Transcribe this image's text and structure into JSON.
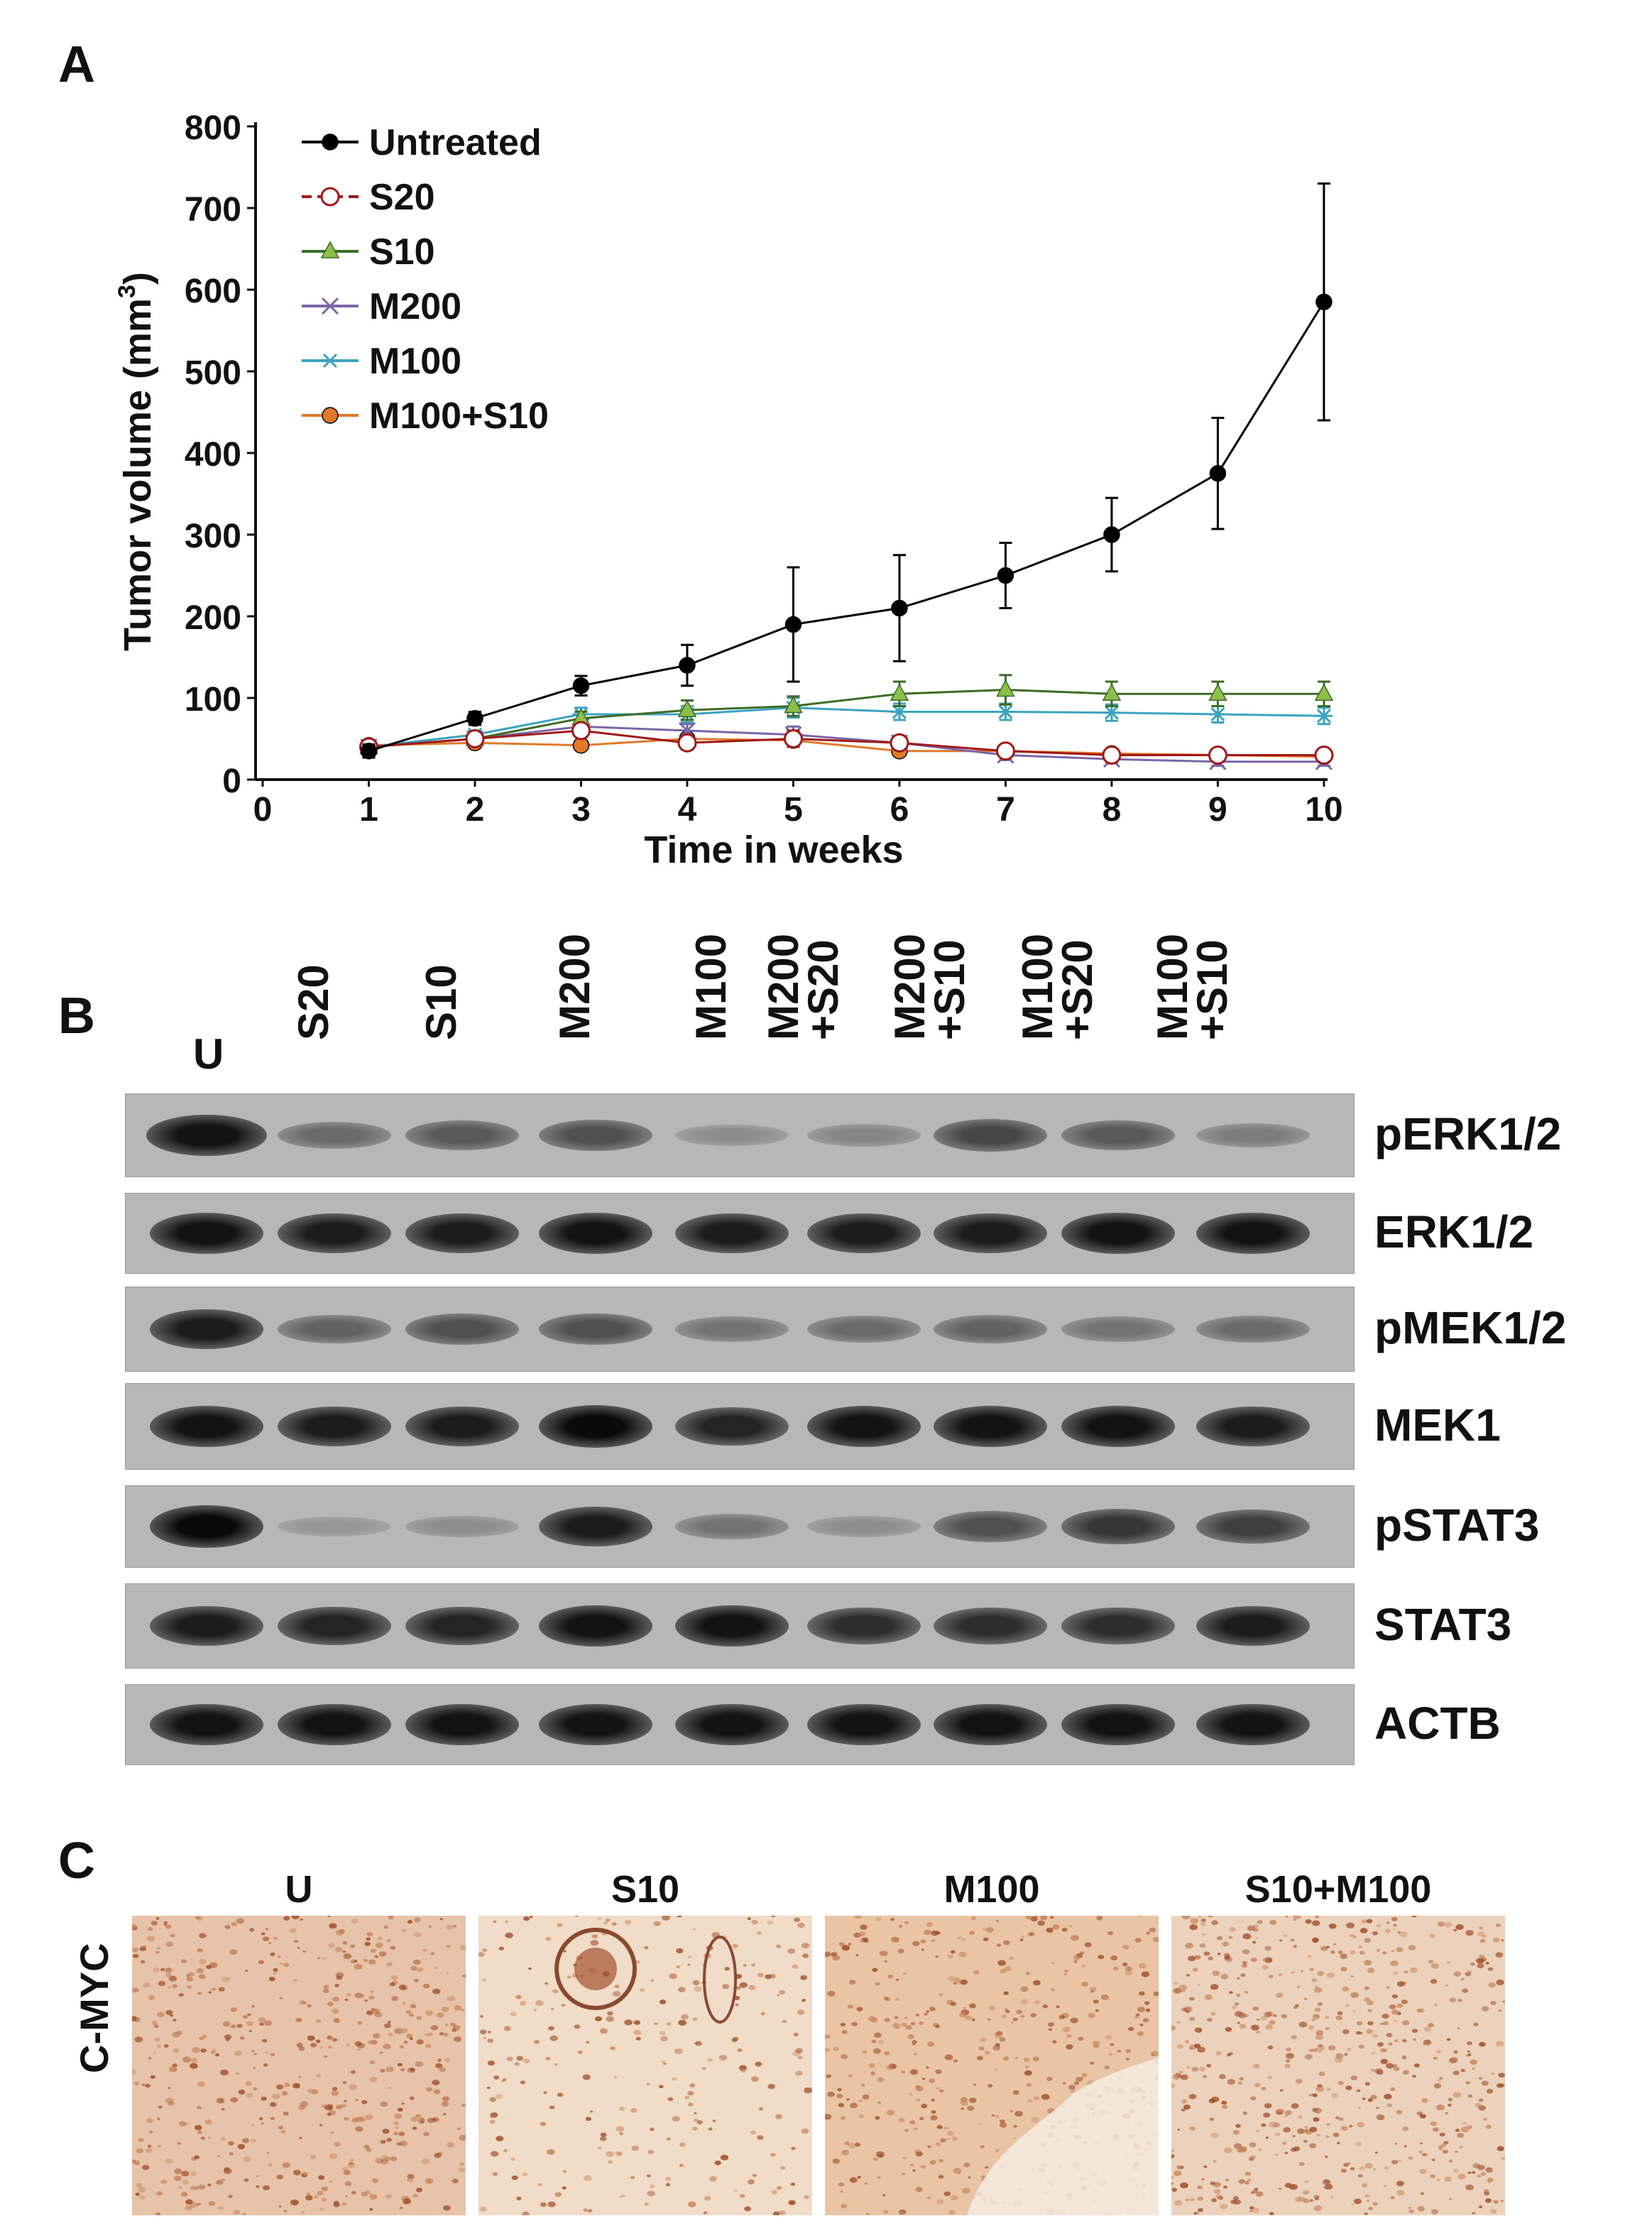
{
  "panels": {
    "a": "A",
    "b": "B",
    "c": "C"
  },
  "chart_data": {
    "type": "line",
    "xlabel": "Time in weeks",
    "ylabel": "Tumor volume (mm",
    "ylabel_sup": "3",
    "ylabel_close": ")",
    "xlim": [
      0,
      10
    ],
    "ylim": [
      0,
      800
    ],
    "xticks": [
      0,
      1,
      2,
      3,
      4,
      5,
      6,
      7,
      8,
      9,
      10
    ],
    "yticks": [
      0,
      100,
      200,
      300,
      400,
      500,
      600,
      700,
      800
    ],
    "x": [
      1,
      2,
      3,
      4,
      5,
      6,
      7,
      8,
      9,
      10
    ],
    "legend_position": "top-left",
    "series": [
      {
        "name": "Untreated",
        "color": "#000000",
        "marker": "filled-circle",
        "values": [
          35,
          75,
          115,
          140,
          190,
          210,
          250,
          300,
          375,
          585
        ],
        "errors": [
          8,
          8,
          12,
          25,
          70,
          65,
          40,
          45,
          68,
          145
        ]
      },
      {
        "name": "S20",
        "color": "#a01818",
        "marker": "open-circle",
        "dashed": true,
        "values": [
          40,
          50,
          60,
          45,
          50,
          45,
          35,
          30,
          30,
          30
        ],
        "errors": [
          5,
          5,
          8,
          8,
          10,
          8,
          6,
          6,
          6,
          6
        ]
      },
      {
        "name": "S10",
        "color": "#3d6b25",
        "marker": "triangle",
        "values": [
          40,
          50,
          75,
          85,
          90,
          105,
          110,
          105,
          105,
          105
        ],
        "errors": [
          5,
          5,
          8,
          12,
          12,
          15,
          18,
          15,
          15,
          15
        ]
      },
      {
        "name": "M200",
        "color": "#7a66a8",
        "marker": "x",
        "values": [
          40,
          50,
          65,
          60,
          55,
          45,
          30,
          25,
          22,
          22
        ],
        "errors": [
          5,
          5,
          8,
          8,
          10,
          8,
          6,
          5,
          5,
          5
        ]
      },
      {
        "name": "M100",
        "color": "#3ba3c0",
        "marker": "star",
        "values": [
          40,
          55,
          80,
          80,
          88,
          83,
          83,
          82,
          80,
          78
        ],
        "errors": [
          5,
          5,
          8,
          10,
          12,
          10,
          10,
          10,
          10,
          10
        ]
      },
      {
        "name": "M100+S10",
        "color": "#e07a2a",
        "marker": "filled-circle",
        "values": [
          42,
          45,
          42,
          50,
          48,
          35,
          35,
          32,
          30,
          28
        ],
        "errors": [
          4,
          4,
          5,
          6,
          6,
          5,
          5,
          5,
          5,
          5
        ]
      }
    ]
  },
  "blot": {
    "lanes": [
      {
        "line1": "U",
        "line2": ""
      },
      {
        "line1": "S20",
        "line2": ""
      },
      {
        "line1": "S10",
        "line2": ""
      },
      {
        "line1": "M200",
        "line2": ""
      },
      {
        "line1": "M100",
        "line2": ""
      },
      {
        "line1": "M200",
        "line2": "+S20"
      },
      {
        "line1": "M200",
        "line2": "+S10"
      },
      {
        "line1": "M100",
        "line2": "+S20"
      },
      {
        "line1": "M100",
        "line2": "+S10"
      }
    ],
    "proteins": [
      {
        "name": "pERK1/2",
        "intensity": [
          0.95,
          0.45,
          0.55,
          0.6,
          0.25,
          0.3,
          0.65,
          0.55,
          0.35
        ]
      },
      {
        "name": "ERK1/2",
        "intensity": [
          0.95,
          0.9,
          0.9,
          0.95,
          0.9,
          0.9,
          0.9,
          0.95,
          0.95
        ]
      },
      {
        "name": "pMEK1/2",
        "intensity": [
          0.9,
          0.5,
          0.6,
          0.6,
          0.4,
          0.45,
          0.5,
          0.4,
          0.45
        ]
      },
      {
        "name": "MEK1",
        "intensity": [
          0.95,
          0.9,
          0.9,
          1.0,
          0.85,
          0.95,
          0.95,
          0.95,
          0.9
        ]
      },
      {
        "name": "pSTAT3",
        "intensity": [
          1.0,
          0.2,
          0.25,
          0.9,
          0.4,
          0.25,
          0.6,
          0.75,
          0.7
        ]
      },
      {
        "name": "STAT3",
        "intensity": [
          0.9,
          0.85,
          0.85,
          0.95,
          0.95,
          0.8,
          0.8,
          0.8,
          0.9
        ]
      },
      {
        "name": "ACTB",
        "intensity": [
          0.95,
          0.95,
          0.95,
          0.95,
          0.95,
          0.95,
          0.95,
          0.95,
          0.95
        ]
      }
    ]
  },
  "ihc": {
    "row_label": "C-MYC",
    "columns": [
      {
        "title": "U"
      },
      {
        "title": "S10"
      },
      {
        "title": "M100"
      },
      {
        "title": "S10+M100"
      }
    ]
  }
}
